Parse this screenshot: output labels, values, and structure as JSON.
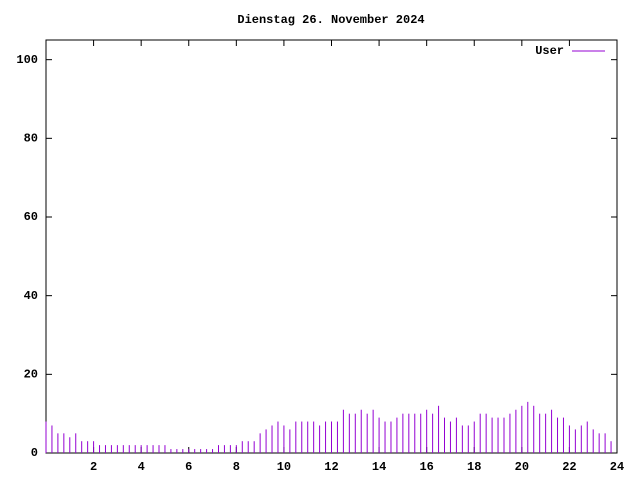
{
  "chart_data": {
    "type": "impulses",
    "title": "Dienstag 26. November 2024",
    "x": [
      0,
      0.25,
      0.5,
      0.75,
      1,
      1.25,
      1.5,
      1.75,
      2,
      2.25,
      2.5,
      2.75,
      3,
      3.25,
      3.5,
      3.75,
      4,
      4.25,
      4.5,
      4.75,
      5,
      5.25,
      5.5,
      5.75,
      6,
      6.25,
      6.5,
      6.75,
      7,
      7.25,
      7.5,
      7.75,
      8,
      8.25,
      8.5,
      8.75,
      9,
      9.25,
      9.5,
      9.75,
      10,
      10.25,
      10.5,
      10.75,
      11,
      11.25,
      11.5,
      11.75,
      12,
      12.25,
      12.5,
      12.75,
      13,
      13.25,
      13.5,
      13.75,
      14,
      14.25,
      14.5,
      14.75,
      15,
      15.25,
      15.5,
      15.75,
      16,
      16.25,
      16.5,
      16.75,
      17,
      17.25,
      17.5,
      17.75,
      18,
      18.25,
      18.5,
      18.75,
      19,
      19.25,
      19.5,
      19.75,
      20,
      20.25,
      20.5,
      20.75,
      21,
      21.25,
      21.5,
      21.75,
      22,
      22.25,
      22.5,
      22.75,
      23,
      23.25,
      23.5,
      23.75
    ],
    "series": [
      {
        "name": "User",
        "color": "#9400d3",
        "values": [
          8,
          7,
          5,
          5,
          4,
          5,
          3,
          3,
          3,
          2,
          2,
          2,
          2,
          2,
          2,
          2,
          2,
          2,
          2,
          2,
          2,
          1,
          1,
          1,
          1,
          1,
          1,
          1,
          1,
          2,
          2,
          2,
          2,
          3,
          3,
          3,
          5,
          6,
          7,
          8,
          7,
          6,
          8,
          8,
          8,
          8,
          7,
          8,
          8,
          8,
          11,
          10,
          10,
          11,
          10,
          11,
          9,
          8,
          8,
          9,
          10,
          10,
          10,
          10,
          11,
          10,
          12,
          9,
          8,
          9,
          7,
          7,
          8,
          10,
          10,
          9,
          9,
          9,
          10,
          11,
          12,
          13,
          12,
          10,
          10,
          11,
          9,
          9,
          7,
          6,
          7,
          8,
          6,
          5,
          5,
          3
        ]
      }
    ],
    "xlim": [
      0,
      24
    ],
    "xticks": [
      2,
      4,
      6,
      8,
      10,
      12,
      14,
      16,
      18,
      20,
      22,
      24
    ],
    "ylim": [
      0,
      105
    ],
    "yticks": [
      0,
      20,
      40,
      60,
      80,
      100
    ],
    "legend": "top-right"
  }
}
